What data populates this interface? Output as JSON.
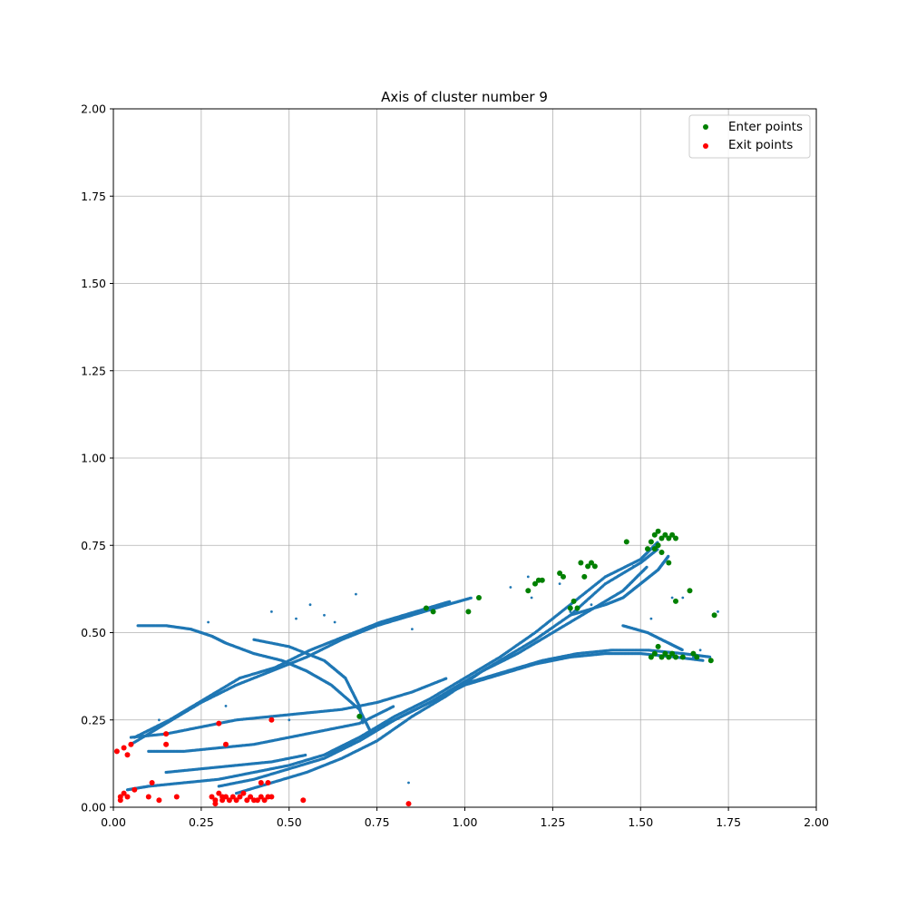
{
  "chart_data": {
    "type": "scatter",
    "title": "Axis of cluster number 9",
    "xlabel": "",
    "ylabel": "",
    "xlim": [
      0,
      2
    ],
    "ylim": [
      0,
      2
    ],
    "xticks": [
      "0.00",
      "0.25",
      "0.50",
      "0.75",
      "1.00",
      "1.25",
      "1.50",
      "1.75",
      "2.00"
    ],
    "yticks": [
      "0.00",
      "0.25",
      "0.50",
      "0.75",
      "1.00",
      "1.25",
      "1.50",
      "1.75",
      "2.00"
    ],
    "grid": true,
    "legend_position": "top-right",
    "series": [
      {
        "name": "",
        "color": "#1f77b4",
        "description_points": "trajectory points",
        "paths": [
          [
            [
              0.05,
              0.18
            ],
            [
              0.15,
              0.24
            ],
            [
              0.25,
              0.3
            ],
            [
              0.35,
              0.35
            ],
            [
              0.45,
              0.39
            ],
            [
              0.55,
              0.43
            ],
            [
              0.65,
              0.48
            ],
            [
              0.75,
              0.52
            ],
            [
              0.85,
              0.55
            ],
            [
              0.95,
              0.58
            ],
            [
              1.02,
              0.6
            ]
          ],
          [
            [
              0.06,
              0.2
            ],
            [
              0.16,
              0.25
            ],
            [
              0.26,
              0.31
            ],
            [
              0.36,
              0.37
            ],
            [
              0.46,
              0.4
            ],
            [
              0.56,
              0.45
            ],
            [
              0.66,
              0.49
            ],
            [
              0.76,
              0.53
            ],
            [
              0.86,
              0.56
            ],
            [
              0.96,
              0.59
            ]
          ],
          [
            [
              0.04,
              0.05
            ],
            [
              0.1,
              0.06
            ],
            [
              0.2,
              0.07
            ],
            [
              0.3,
              0.08
            ],
            [
              0.4,
              0.1
            ],
            [
              0.5,
              0.12
            ],
            [
              0.6,
              0.15
            ],
            [
              0.7,
              0.2
            ],
            [
              0.8,
              0.26
            ],
            [
              0.9,
              0.31
            ],
            [
              1.0,
              0.37
            ],
            [
              1.1,
              0.43
            ],
            [
              1.2,
              0.5
            ],
            [
              1.3,
              0.58
            ],
            [
              1.4,
              0.66
            ],
            [
              1.5,
              0.71
            ],
            [
              1.55,
              0.76
            ]
          ],
          [
            [
              0.3,
              0.06
            ],
            [
              0.4,
              0.08
            ],
            [
              0.5,
              0.11
            ],
            [
              0.6,
              0.14
            ],
            [
              0.7,
              0.19
            ],
            [
              0.8,
              0.25
            ],
            [
              0.9,
              0.3
            ],
            [
              1.0,
              0.36
            ],
            [
              1.1,
              0.42
            ],
            [
              1.2,
              0.48
            ],
            [
              1.3,
              0.55
            ],
            [
              1.4,
              0.64
            ],
            [
              1.5,
              0.7
            ],
            [
              1.55,
              0.74
            ]
          ],
          [
            [
              0.35,
              0.04
            ],
            [
              0.45,
              0.07
            ],
            [
              0.55,
              0.1
            ],
            [
              0.65,
              0.14
            ],
            [
              0.75,
              0.19
            ],
            [
              0.85,
              0.26
            ],
            [
              0.95,
              0.32
            ],
            [
              1.05,
              0.39
            ],
            [
              1.15,
              0.44
            ],
            [
              1.25,
              0.5
            ],
            [
              1.35,
              0.56
            ],
            [
              1.45,
              0.62
            ],
            [
              1.52,
              0.69
            ]
          ],
          [
            [
              0.6,
              0.15
            ],
            [
              0.7,
              0.19
            ],
            [
              0.8,
              0.25
            ],
            [
              0.9,
              0.3
            ],
            [
              1.0,
              0.35
            ],
            [
              1.1,
              0.38
            ],
            [
              1.2,
              0.41
            ],
            [
              1.3,
              0.43
            ],
            [
              1.4,
              0.44
            ],
            [
              1.5,
              0.44
            ],
            [
              1.6,
              0.43
            ],
            [
              1.68,
              0.42
            ]
          ],
          [
            [
              0.62,
              0.16
            ],
            [
              0.72,
              0.21
            ],
            [
              0.82,
              0.26
            ],
            [
              0.92,
              0.31
            ],
            [
              1.02,
              0.36
            ],
            [
              1.12,
              0.39
            ],
            [
              1.22,
              0.42
            ],
            [
              1.32,
              0.44
            ],
            [
              1.42,
              0.45
            ],
            [
              1.52,
              0.45
            ],
            [
              1.62,
              0.44
            ],
            [
              1.7,
              0.43
            ]
          ],
          [
            [
              0.07,
              0.52
            ],
            [
              0.15,
              0.52
            ],
            [
              0.22,
              0.51
            ],
            [
              0.28,
              0.49
            ],
            [
              0.32,
              0.47
            ],
            [
              0.4,
              0.44
            ],
            [
              0.48,
              0.42
            ],
            [
              0.55,
              0.39
            ],
            [
              0.62,
              0.35
            ],
            [
              0.7,
              0.28
            ],
            [
              0.73,
              0.22
            ]
          ],
          [
            [
              0.05,
              0.2
            ],
            [
              0.15,
              0.21
            ],
            [
              0.25,
              0.23
            ],
            [
              0.35,
              0.25
            ],
            [
              0.45,
              0.26
            ],
            [
              0.55,
              0.27
            ],
            [
              0.65,
              0.28
            ],
            [
              0.75,
              0.3
            ],
            [
              0.85,
              0.33
            ],
            [
              0.95,
              0.37
            ]
          ],
          [
            [
              0.1,
              0.16
            ],
            [
              0.2,
              0.16
            ],
            [
              0.3,
              0.17
            ],
            [
              0.4,
              0.18
            ],
            [
              0.5,
              0.2
            ],
            [
              0.6,
              0.22
            ],
            [
              0.7,
              0.24
            ],
            [
              0.8,
              0.29
            ]
          ],
          [
            [
              0.4,
              0.48
            ],
            [
              0.5,
              0.46
            ],
            [
              0.6,
              0.42
            ],
            [
              0.66,
              0.37
            ],
            [
              0.7,
              0.29
            ],
            [
              0.71,
              0.24
            ]
          ],
          [
            [
              0.15,
              0.1
            ],
            [
              0.25,
              0.11
            ],
            [
              0.35,
              0.12
            ],
            [
              0.45,
              0.13
            ],
            [
              0.55,
              0.15
            ]
          ],
          [
            [
              1.3,
              0.55
            ],
            [
              1.4,
              0.58
            ],
            [
              1.45,
              0.6
            ],
            [
              1.5,
              0.64
            ],
            [
              1.55,
              0.68
            ],
            [
              1.58,
              0.72
            ]
          ],
          [
            [
              1.45,
              0.52
            ],
            [
              1.52,
              0.5
            ],
            [
              1.58,
              0.47
            ],
            [
              1.62,
              0.45
            ]
          ]
        ],
        "scatter": [
          [
            0.69,
            0.61
          ],
          [
            0.45,
            0.56
          ],
          [
            0.56,
            0.58
          ],
          [
            0.6,
            0.55
          ],
          [
            0.52,
            0.54
          ],
          [
            0.63,
            0.53
          ],
          [
            0.84,
            0.07
          ],
          [
            0.32,
            0.29
          ],
          [
            0.5,
            0.25
          ],
          [
            0.13,
            0.25
          ],
          [
            1.18,
            0.66
          ],
          [
            1.19,
            0.6
          ],
          [
            1.48,
            0.69
          ],
          [
            1.53,
            0.54
          ],
          [
            1.59,
            0.6
          ],
          [
            1.62,
            0.6
          ],
          [
            1.72,
            0.56
          ],
          [
            1.27,
            0.64
          ],
          [
            1.13,
            0.63
          ],
          [
            1.4,
            0.59
          ],
          [
            1.32,
            0.56
          ],
          [
            1.36,
            0.58
          ],
          [
            1.3,
            0.56
          ],
          [
            1.65,
            0.43
          ],
          [
            1.67,
            0.45
          ],
          [
            1.6,
            0.59
          ],
          [
            0.85,
            0.51
          ],
          [
            0.27,
            0.53
          ]
        ]
      },
      {
        "name": "Enter points",
        "color": "#008000",
        "points": [
          [
            0.89,
            0.57
          ],
          [
            0.91,
            0.56
          ],
          [
            1.01,
            0.56
          ],
          [
            1.04,
            0.6
          ],
          [
            0.7,
            0.26
          ],
          [
            1.18,
            0.62
          ],
          [
            1.2,
            0.64
          ],
          [
            1.21,
            0.65
          ],
          [
            1.22,
            0.65
          ],
          [
            1.27,
            0.67
          ],
          [
            1.28,
            0.66
          ],
          [
            1.3,
            0.57
          ],
          [
            1.31,
            0.59
          ],
          [
            1.32,
            0.57
          ],
          [
            1.33,
            0.7
          ],
          [
            1.34,
            0.66
          ],
          [
            1.35,
            0.69
          ],
          [
            1.36,
            0.7
          ],
          [
            1.37,
            0.69
          ],
          [
            1.46,
            0.76
          ],
          [
            1.52,
            0.74
          ],
          [
            1.53,
            0.76
          ],
          [
            1.54,
            0.78
          ],
          [
            1.55,
            0.79
          ],
          [
            1.56,
            0.77
          ],
          [
            1.57,
            0.78
          ],
          [
            1.58,
            0.77
          ],
          [
            1.59,
            0.78
          ],
          [
            1.6,
            0.77
          ],
          [
            1.55,
            0.75
          ],
          [
            1.56,
            0.73
          ],
          [
            1.58,
            0.7
          ],
          [
            1.6,
            0.59
          ],
          [
            1.64,
            0.62
          ],
          [
            1.53,
            0.43
          ],
          [
            1.54,
            0.44
          ],
          [
            1.55,
            0.46
          ],
          [
            1.56,
            0.43
          ],
          [
            1.57,
            0.44
          ],
          [
            1.58,
            0.43
          ],
          [
            1.59,
            0.44
          ],
          [
            1.6,
            0.43
          ],
          [
            1.62,
            0.43
          ],
          [
            1.65,
            0.44
          ],
          [
            1.66,
            0.43
          ],
          [
            1.7,
            0.42
          ],
          [
            1.71,
            0.55
          ],
          [
            1.54,
            0.74
          ]
        ]
      },
      {
        "name": "Exit points",
        "color": "#ff0000",
        "points": [
          [
            0.01,
            0.16
          ],
          [
            0.03,
            0.17
          ],
          [
            0.04,
            0.15
          ],
          [
            0.05,
            0.18
          ],
          [
            0.02,
            0.03
          ],
          [
            0.02,
            0.02
          ],
          [
            0.03,
            0.04
          ],
          [
            0.04,
            0.03
          ],
          [
            0.06,
            0.05
          ],
          [
            0.1,
            0.03
          ],
          [
            0.11,
            0.07
          ],
          [
            0.13,
            0.02
          ],
          [
            0.15,
            0.18
          ],
          [
            0.15,
            0.21
          ],
          [
            0.18,
            0.03
          ],
          [
            0.28,
            0.03
          ],
          [
            0.29,
            0.02
          ],
          [
            0.3,
            0.04
          ],
          [
            0.31,
            0.02
          ],
          [
            0.32,
            0.03
          ],
          [
            0.33,
            0.02
          ],
          [
            0.34,
            0.03
          ],
          [
            0.35,
            0.02
          ],
          [
            0.36,
            0.03
          ],
          [
            0.37,
            0.04
          ],
          [
            0.38,
            0.02
          ],
          [
            0.39,
            0.03
          ],
          [
            0.4,
            0.02
          ],
          [
            0.41,
            0.02
          ],
          [
            0.42,
            0.03
          ],
          [
            0.43,
            0.02
          ],
          [
            0.44,
            0.03
          ],
          [
            0.45,
            0.03
          ],
          [
            0.42,
            0.07
          ],
          [
            0.44,
            0.07
          ],
          [
            0.3,
            0.24
          ],
          [
            0.32,
            0.18
          ],
          [
            0.45,
            0.25
          ],
          [
            0.54,
            0.02
          ],
          [
            0.84,
            0.01
          ],
          [
            0.29,
            0.01
          ],
          [
            0.31,
            0.03
          ]
        ]
      }
    ]
  }
}
